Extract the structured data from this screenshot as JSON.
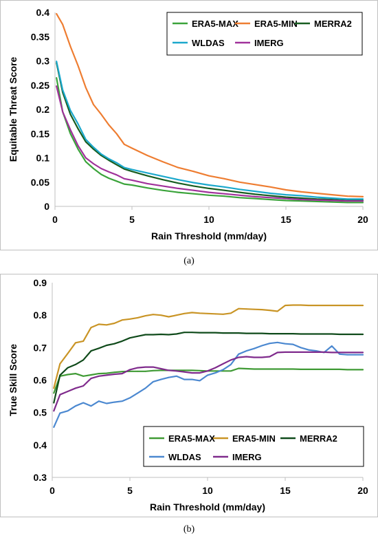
{
  "captions": [
    "(a)",
    "(b)"
  ],
  "chart_data": [
    {
      "type": "line",
      "xlabel": "Rain Threshold (mm/day)",
      "ylabel": "Equitable Threat Score",
      "xlim": [
        0,
        20
      ],
      "ylim": [
        0,
        0.4
      ],
      "xticks": [
        "0",
        "5",
        "10",
        "15",
        "20"
      ],
      "yticks": [
        "0",
        "0.05",
        "0.1",
        "0.15",
        "0.2",
        "0.25",
        "0.3",
        "0.35",
        "0.4"
      ],
      "grid": false,
      "legend_position": "top-right",
      "x": [
        0.1,
        0.5,
        1,
        1.5,
        2,
        2.5,
        3,
        3.5,
        4,
        4.5,
        5,
        6,
        7,
        8,
        9,
        10,
        11,
        12,
        13,
        14,
        15,
        16,
        17,
        18,
        19,
        20
      ],
      "series": [
        {
          "name": "ERA5-MAX",
          "color": "#3aa33a",
          "values": [
            0.265,
            0.195,
            0.15,
            0.118,
            0.092,
            0.078,
            0.066,
            0.058,
            0.052,
            0.046,
            0.044,
            0.038,
            0.033,
            0.029,
            0.026,
            0.023,
            0.021,
            0.018,
            0.016,
            0.014,
            0.012,
            0.011,
            0.01,
            0.009,
            0.008,
            0.008
          ]
        },
        {
          "name": "ERA5-MIN",
          "color": "#ee7d31",
          "values": [
            0.397,
            0.375,
            0.33,
            0.29,
            0.245,
            0.21,
            0.19,
            0.168,
            0.15,
            0.128,
            0.12,
            0.105,
            0.092,
            0.08,
            0.072,
            0.063,
            0.057,
            0.05,
            0.045,
            0.04,
            0.034,
            0.03,
            0.027,
            0.024,
            0.021,
            0.02
          ]
        },
        {
          "name": "MERRA2",
          "color": "#175d20",
          "values": [
            0.296,
            0.235,
            0.19,
            0.16,
            0.133,
            0.118,
            0.105,
            0.095,
            0.086,
            0.077,
            0.072,
            0.063,
            0.055,
            0.048,
            0.042,
            0.037,
            0.033,
            0.029,
            0.025,
            0.022,
            0.019,
            0.017,
            0.015,
            0.014,
            0.012,
            0.012
          ]
        },
        {
          "name": "WLDAS",
          "color": "#1ba8cc",
          "values": [
            0.299,
            0.24,
            0.198,
            0.17,
            0.138,
            0.122,
            0.108,
            0.098,
            0.09,
            0.08,
            0.076,
            0.069,
            0.062,
            0.055,
            0.049,
            0.044,
            0.04,
            0.035,
            0.031,
            0.027,
            0.024,
            0.022,
            0.019,
            0.017,
            0.015,
            0.015
          ]
        },
        {
          "name": "IMERG",
          "color": "#a0319a",
          "values": [
            0.248,
            0.195,
            0.158,
            0.125,
            0.1,
            0.088,
            0.078,
            0.071,
            0.065,
            0.057,
            0.054,
            0.047,
            0.042,
            0.037,
            0.033,
            0.029,
            0.026,
            0.023,
            0.02,
            0.018,
            0.016,
            0.014,
            0.013,
            0.012,
            0.011,
            0.011
          ]
        }
      ]
    },
    {
      "type": "line",
      "xlabel": "Rain Threshold (mm/day)",
      "ylabel": "True Skill Score",
      "xlim": [
        0,
        20
      ],
      "ylim": [
        0.3,
        0.9
      ],
      "xticks": [
        "0",
        "5",
        "10",
        "15",
        "20"
      ],
      "yticks": [
        "0.3",
        "0.4",
        "0.5",
        "0.6",
        "0.7",
        "0.8",
        "0.9"
      ],
      "grid": false,
      "legend_position": "bottom-right",
      "x": [
        0.1,
        0.5,
        1,
        1.5,
        2,
        2.5,
        3,
        3.5,
        4,
        4.5,
        5,
        5.5,
        6,
        6.5,
        7,
        7.5,
        8,
        8.5,
        9,
        9.5,
        10,
        10.5,
        11,
        11.5,
        12,
        12.5,
        13,
        13.5,
        14,
        14.5,
        15,
        15.5,
        16,
        16.5,
        17,
        17.5,
        18,
        18.5,
        19,
        19.5,
        20
      ],
      "series": [
        {
          "name": "ERA5-MAX",
          "color": "#3f9a34",
          "values": [
            0.56,
            0.612,
            0.617,
            0.62,
            0.612,
            0.616,
            0.62,
            0.621,
            0.624,
            0.626,
            0.627,
            0.627,
            0.627,
            0.629,
            0.63,
            0.63,
            0.63,
            0.63,
            0.63,
            0.629,
            0.628,
            0.628,
            0.628,
            0.628,
            0.636,
            0.635,
            0.634,
            0.634,
            0.634,
            0.634,
            0.634,
            0.634,
            0.633,
            0.633,
            0.633,
            0.633,
            0.633,
            0.633,
            0.632,
            0.632,
            0.632
          ]
        },
        {
          "name": "ERA5-MIN",
          "color": "#c99425",
          "values": [
            0.575,
            0.65,
            0.682,
            0.715,
            0.72,
            0.762,
            0.772,
            0.77,
            0.775,
            0.785,
            0.788,
            0.792,
            0.798,
            0.802,
            0.8,
            0.795,
            0.8,
            0.805,
            0.808,
            0.806,
            0.805,
            0.804,
            0.803,
            0.806,
            0.82,
            0.819,
            0.818,
            0.817,
            0.815,
            0.812,
            0.83,
            0.831,
            0.831,
            0.83,
            0.83,
            0.83,
            0.83,
            0.83,
            0.83,
            0.83,
            0.83
          ]
        },
        {
          "name": "MERRA2",
          "color": "#0f4a1a",
          "values": [
            0.53,
            0.615,
            0.638,
            0.648,
            0.662,
            0.69,
            0.698,
            0.707,
            0.712,
            0.72,
            0.73,
            0.735,
            0.74,
            0.74,
            0.741,
            0.74,
            0.742,
            0.747,
            0.747,
            0.746,
            0.746,
            0.746,
            0.745,
            0.745,
            0.745,
            0.744,
            0.744,
            0.744,
            0.743,
            0.743,
            0.743,
            0.743,
            0.742,
            0.742,
            0.742,
            0.742,
            0.742,
            0.741,
            0.741,
            0.741,
            0.741
          ]
        },
        {
          "name": "WLDAS",
          "color": "#4b88d0",
          "values": [
            0.455,
            0.498,
            0.505,
            0.52,
            0.53,
            0.52,
            0.535,
            0.528,
            0.532,
            0.535,
            0.545,
            0.56,
            0.575,
            0.595,
            0.602,
            0.608,
            0.612,
            0.602,
            0.602,
            0.598,
            0.615,
            0.622,
            0.632,
            0.648,
            0.68,
            0.69,
            0.697,
            0.706,
            0.713,
            0.716,
            0.712,
            0.71,
            0.7,
            0.693,
            0.69,
            0.685,
            0.705,
            0.68,
            0.678,
            0.678,
            0.678
          ]
        },
        {
          "name": "IMERG",
          "color": "#7f2a8c",
          "values": [
            0.505,
            0.555,
            0.565,
            0.575,
            0.582,
            0.605,
            0.612,
            0.615,
            0.618,
            0.62,
            0.632,
            0.638,
            0.64,
            0.64,
            0.635,
            0.63,
            0.628,
            0.625,
            0.622,
            0.622,
            0.628,
            0.638,
            0.65,
            0.662,
            0.67,
            0.672,
            0.67,
            0.67,
            0.672,
            0.685,
            0.686,
            0.686,
            0.686,
            0.686,
            0.686,
            0.686,
            0.685,
            0.685,
            0.685,
            0.685,
            0.685
          ]
        }
      ]
    }
  ]
}
